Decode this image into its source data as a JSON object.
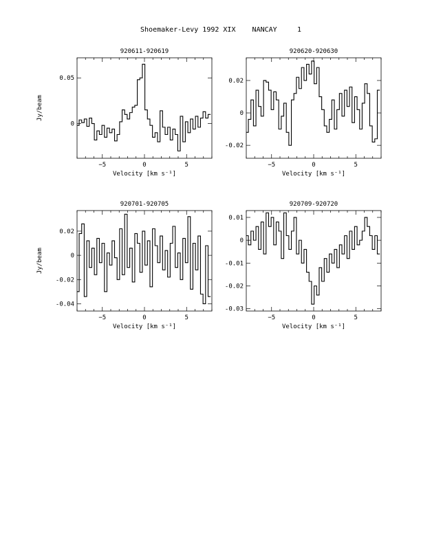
{
  "header": {
    "title": "Shoemaker-Levy 1992 XIX    NANCAY",
    "page_number": "1"
  },
  "chart_data": [
    {
      "type": "line",
      "title": "920611-920619",
      "xlabel": "Velocity [km s⁻¹]",
      "ylabel": "Jy/beam",
      "xlim": [
        -8,
        8
      ],
      "ylim": [
        -0.038,
        0.072
      ],
      "xticks": [
        -5,
        0,
        5
      ],
      "yticks": [
        0,
        0.05
      ],
      "ytick_labels": [
        "0",
        "0.05"
      ],
      "x": [
        -7.9,
        -7.6,
        -7.3,
        -7.0,
        -6.7,
        -6.4,
        -6.1,
        -5.8,
        -5.5,
        -5.2,
        -4.9,
        -4.6,
        -4.3,
        -4.0,
        -3.7,
        -3.4,
        -3.1,
        -2.8,
        -2.5,
        -2.2,
        -1.9,
        -1.6,
        -1.3,
        -1.0,
        -0.7,
        -0.4,
        -0.1,
        0.2,
        0.5,
        0.8,
        1.1,
        1.4,
        1.7,
        2.0,
        2.3,
        2.6,
        2.9,
        3.2,
        3.5,
        3.8,
        4.1,
        4.4,
        4.7,
        5.0,
        5.3,
        5.6,
        5.9,
        6.2,
        6.5,
        6.8,
        7.1,
        7.4,
        7.7
      ],
      "values": [
        -0.002,
        0.004,
        0.001,
        0.005,
        -0.003,
        0.006,
        0.0,
        -0.018,
        -0.008,
        -0.012,
        -0.002,
        -0.015,
        -0.005,
        -0.01,
        -0.006,
        -0.019,
        -0.012,
        0.002,
        0.015,
        0.01,
        0.005,
        0.012,
        0.018,
        0.02,
        0.048,
        0.05,
        0.065,
        0.015,
        0.005,
        -0.002,
        -0.015,
        -0.01,
        -0.02,
        0.014,
        -0.004,
        -0.012,
        -0.004,
        -0.018,
        -0.006,
        -0.012,
        -0.03,
        0.008,
        -0.02,
        0.002,
        -0.01,
        0.005,
        -0.006,
        0.008,
        -0.004,
        0.006,
        0.013,
        0.006,
        0.01
      ]
    },
    {
      "type": "line",
      "title": "920620-920630",
      "xlabel": "Velocity [km s⁻¹]",
      "ylabel": "",
      "xlim": [
        -8,
        8
      ],
      "ylim": [
        -0.028,
        0.034
      ],
      "xticks": [
        -5,
        0,
        5
      ],
      "yticks": [
        -0.02,
        0,
        0.02
      ],
      "ytick_labels": [
        "-0.02",
        "0",
        "0.02"
      ],
      "x": [
        -7.9,
        -7.6,
        -7.3,
        -7.0,
        -6.7,
        -6.4,
        -6.1,
        -5.8,
        -5.5,
        -5.2,
        -4.9,
        -4.6,
        -4.3,
        -4.0,
        -3.7,
        -3.4,
        -3.1,
        -2.8,
        -2.5,
        -2.2,
        -1.9,
        -1.6,
        -1.3,
        -1.0,
        -0.7,
        -0.4,
        -0.1,
        0.2,
        0.5,
        0.8,
        1.1,
        1.4,
        1.7,
        2.0,
        2.3,
        2.6,
        2.9,
        3.2,
        3.5,
        3.8,
        4.1,
        4.4,
        4.7,
        5.0,
        5.3,
        5.6,
        5.9,
        6.2,
        6.5,
        6.8,
        7.1,
        7.4,
        7.7
      ],
      "values": [
        -0.012,
        -0.004,
        0.008,
        -0.008,
        0.014,
        0.004,
        -0.002,
        0.02,
        0.019,
        0.014,
        0.002,
        0.013,
        0.008,
        -0.01,
        -0.002,
        0.006,
        -0.012,
        -0.02,
        0.008,
        0.012,
        0.022,
        0.015,
        0.028,
        0.02,
        0.03,
        0.024,
        0.032,
        0.018,
        0.028,
        0.01,
        0.002,
        -0.008,
        -0.012,
        -0.004,
        0.008,
        -0.01,
        0.002,
        0.012,
        -0.002,
        0.014,
        0.004,
        0.016,
        -0.006,
        0.01,
        0.002,
        -0.01,
        0.006,
        0.018,
        0.012,
        -0.008,
        -0.018,
        -0.016,
        0.014
      ]
    },
    {
      "type": "line",
      "title": "920701-920705",
      "xlabel": "Velocity [km s⁻¹]",
      "ylabel": "Jy/beam",
      "xlim": [
        -8,
        8
      ],
      "ylim": [
        -0.046,
        0.037
      ],
      "xticks": [
        -5,
        0,
        5
      ],
      "yticks": [
        -0.04,
        -0.02,
        0,
        0.02
      ],
      "ytick_labels": [
        "-0.04",
        "-0.02",
        "0",
        "0.02"
      ],
      "x": [
        -7.9,
        -7.6,
        -7.3,
        -7.0,
        -6.7,
        -6.4,
        -6.1,
        -5.8,
        -5.5,
        -5.2,
        -4.9,
        -4.6,
        -4.3,
        -4.0,
        -3.7,
        -3.4,
        -3.1,
        -2.8,
        -2.5,
        -2.2,
        -1.9,
        -1.6,
        -1.3,
        -1.0,
        -0.7,
        -0.4,
        -0.1,
        0.2,
        0.5,
        0.8,
        1.1,
        1.4,
        1.7,
        2.0,
        2.3,
        2.6,
        2.9,
        3.2,
        3.5,
        3.8,
        4.1,
        4.4,
        4.7,
        5.0,
        5.3,
        5.6,
        5.9,
        6.2,
        6.5,
        6.8,
        7.1,
        7.4,
        7.7
      ],
      "values": [
        -0.03,
        0.018,
        0.026,
        -0.034,
        0.012,
        -0.01,
        0.006,
        -0.016,
        0.014,
        -0.006,
        0.01,
        -0.03,
        0.002,
        -0.008,
        0.012,
        -0.002,
        -0.02,
        0.022,
        -0.016,
        0.034,
        -0.01,
        0.006,
        -0.022,
        0.018,
        0.01,
        -0.014,
        0.02,
        -0.008,
        0.012,
        -0.026,
        0.022,
        0.008,
        -0.006,
        0.016,
        -0.012,
        0.004,
        -0.018,
        0.01,
        0.024,
        -0.01,
        0.002,
        -0.02,
        0.014,
        -0.006,
        0.032,
        -0.028,
        0.01,
        -0.012,
        0.016,
        -0.032,
        -0.04,
        0.008,
        -0.034
      ]
    },
    {
      "type": "line",
      "title": "920709-920720",
      "xlabel": "Velocity [km s⁻¹]",
      "ylabel": "",
      "xlim": [
        -8,
        8
      ],
      "ylim": [
        -0.031,
        0.013
      ],
      "xticks": [
        -5,
        0,
        5
      ],
      "yticks": [
        -0.03,
        -0.02,
        -0.01,
        0,
        0.01
      ],
      "ytick_labels": [
        "-0.03",
        "-0.02",
        "-0.01",
        "0",
        "0.01"
      ],
      "x": [
        -7.9,
        -7.6,
        -7.3,
        -7.0,
        -6.7,
        -6.4,
        -6.1,
        -5.8,
        -5.5,
        -5.2,
        -4.9,
        -4.6,
        -4.3,
        -4.0,
        -3.7,
        -3.4,
        -3.1,
        -2.8,
        -2.5,
        -2.2,
        -1.9,
        -1.6,
        -1.3,
        -1.0,
        -0.7,
        -0.4,
        -0.1,
        0.2,
        0.5,
        0.8,
        1.1,
        1.4,
        1.7,
        2.0,
        2.3,
        2.6,
        2.9,
        3.2,
        3.5,
        3.8,
        4.1,
        4.4,
        4.7,
        5.0,
        5.3,
        5.6,
        5.9,
        6.2,
        6.5,
        6.8,
        7.1,
        7.4,
        7.7
      ],
      "values": [
        0.002,
        -0.002,
        0.004,
        0.0,
        0.006,
        -0.004,
        0.008,
        -0.006,
        0.012,
        0.006,
        0.01,
        -0.002,
        0.008,
        0.004,
        -0.008,
        0.012,
        0.002,
        -0.004,
        0.004,
        0.01,
        -0.006,
        0.0,
        -0.01,
        -0.004,
        -0.014,
        -0.018,
        -0.028,
        -0.02,
        -0.024,
        -0.012,
        -0.018,
        -0.008,
        -0.014,
        -0.006,
        -0.01,
        -0.004,
        -0.012,
        -0.002,
        -0.006,
        0.002,
        -0.008,
        0.004,
        -0.004,
        0.006,
        -0.002,
        0.0,
        0.004,
        0.01,
        0.006,
        0.002,
        -0.004,
        0.002,
        -0.006
      ]
    }
  ]
}
